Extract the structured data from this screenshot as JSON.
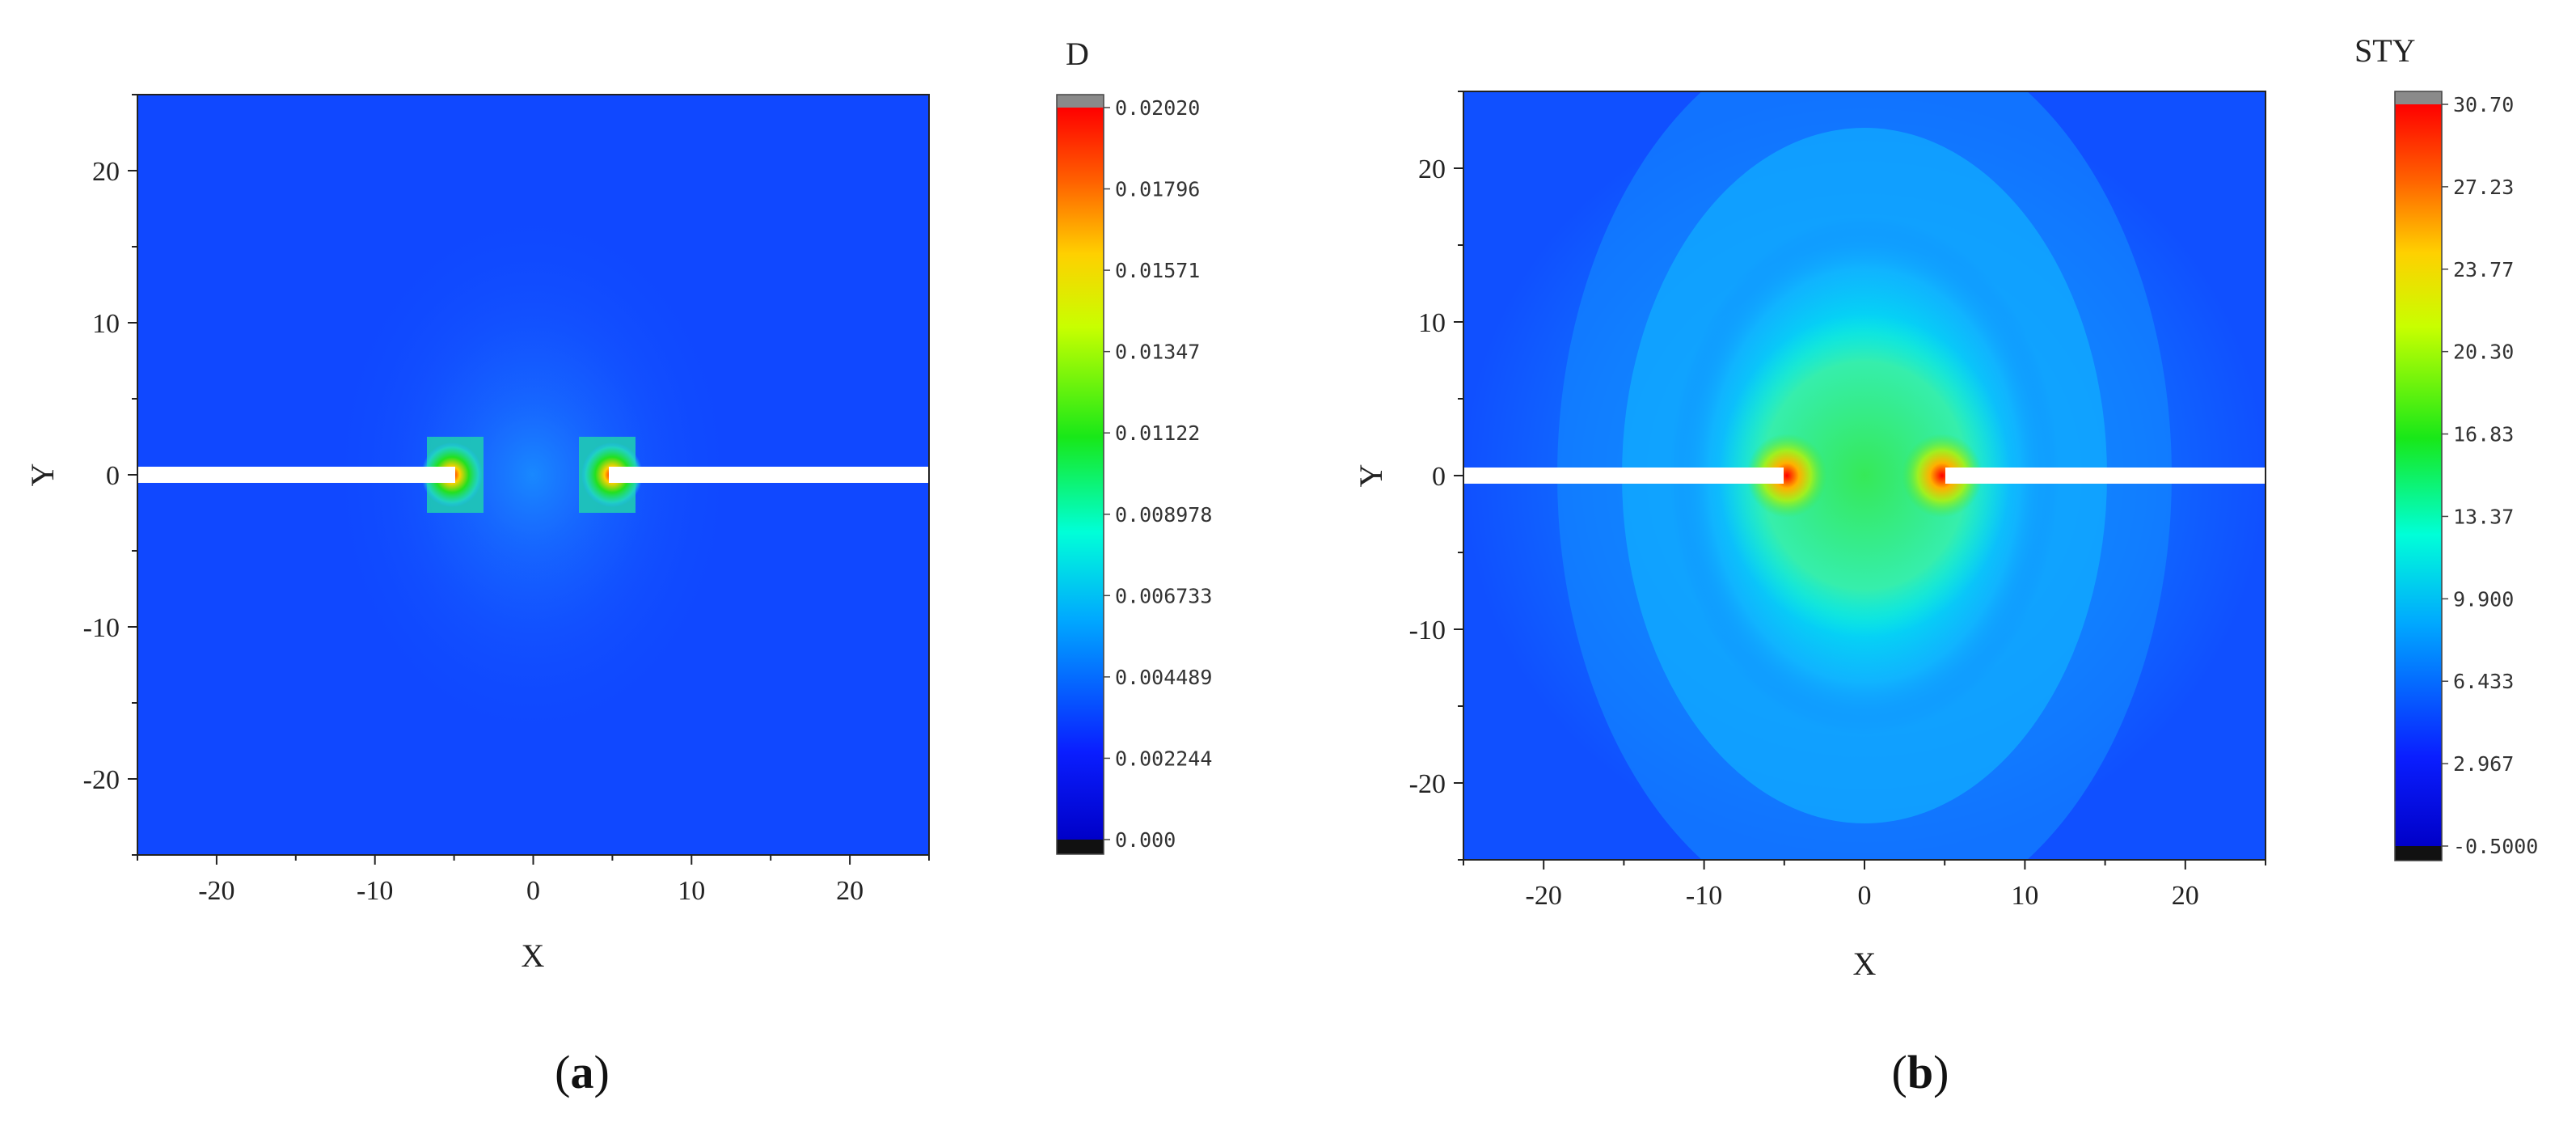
{
  "chart_data": [
    {
      "type": "heatmap",
      "panel_label": "a",
      "xlabel": "X",
      "ylabel": "Y",
      "xlim": [
        -25,
        25
      ],
      "ylim": [
        -25,
        25
      ],
      "xticks": [
        -20,
        -10,
        0,
        10,
        20
      ],
      "yticks": [
        -20,
        -10,
        0,
        10,
        20
      ],
      "colorbar": {
        "title": "D",
        "min": 0.0,
        "max": 0.0202,
        "tick_labels": [
          "0.02020",
          "0.01796",
          "0.01571",
          "0.01347",
          "0.01122",
          "0.008978",
          "0.006733",
          "0.004489",
          "0.002244",
          "0.000"
        ]
      },
      "crack": {
        "y": 0,
        "left_tip_x": -5,
        "right_tip_x": 5
      },
      "field_pattern": "localized damage concentrated around the two crack tips"
    },
    {
      "type": "heatmap",
      "panel_label": "b",
      "xlabel": "X",
      "ylabel": "Y",
      "xlim": [
        -25,
        25
      ],
      "ylim": [
        -25,
        25
      ],
      "xticks": [
        -20,
        -10,
        0,
        10,
        20
      ],
      "yticks": [
        -20,
        -10,
        0,
        10,
        20
      ],
      "colorbar": {
        "title": "STY",
        "min": -0.5,
        "max": 30.7,
        "tick_labels": [
          "30.70",
          "27.23",
          "23.77",
          "20.30",
          "16.83",
          "13.37",
          "9.900",
          "6.433",
          "2.967",
          "-0.5000"
        ]
      },
      "crack": {
        "y": 0,
        "left_tip_x": -5,
        "right_tip_x": 5
      },
      "field_pattern": "elliptical stress zone between crack tips with peaks at the tips"
    }
  ]
}
